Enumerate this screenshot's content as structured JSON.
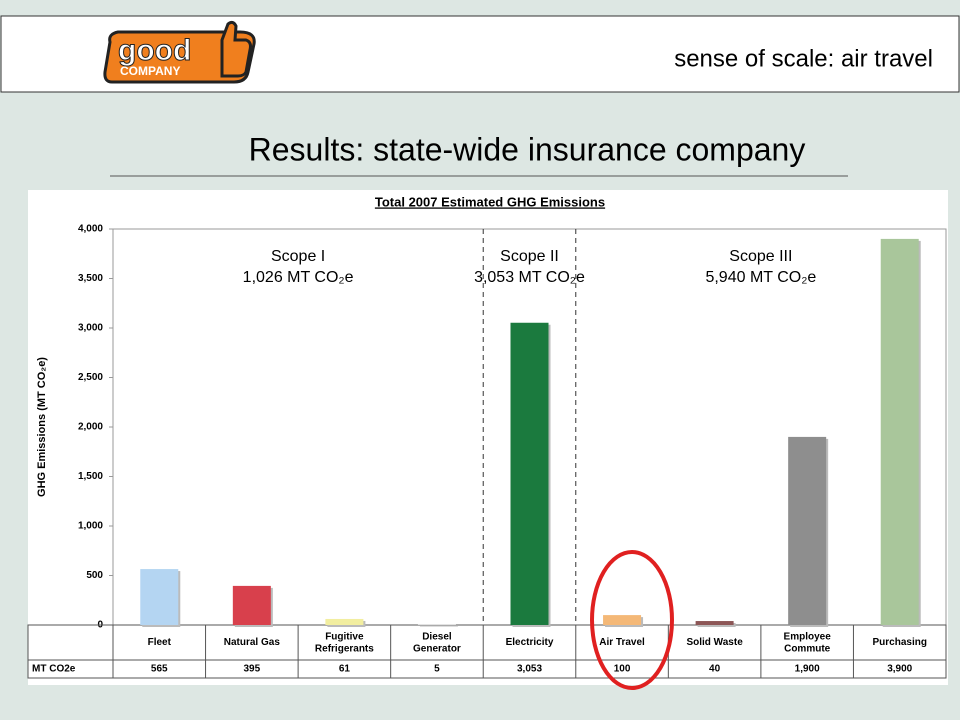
{
  "header": {
    "logo_top": "good",
    "logo_bottom": "COMPANY",
    "title": "sense of scale:  air travel"
  },
  "slide_title": "Results:  state-wide insurance company",
  "chart_data": {
    "type": "bar",
    "title": "Total 2007 Estimated GHG Emissions",
    "y_label": "GHG Emissions (MT CO₂e)",
    "categories": [
      "Fleet",
      "Natural Gas",
      "Fugitive\nRefrigerants",
      "Diesel\nGenerator",
      "Electricity",
      "Air Travel",
      "Solid Waste",
      "Employee\nCommute",
      "Purchasing"
    ],
    "values": [
      565,
      395,
      61,
      5,
      3053,
      100,
      40,
      1900,
      3900
    ],
    "value_labels": [
      "565",
      "395",
      "61",
      "5",
      "3,053",
      "100",
      "40",
      "1,900",
      "3,900"
    ],
    "colors": [
      "#b4d5f2",
      "#d8404c",
      "#f2eea0",
      "#c9c9c9",
      "#1b7a3e",
      "#f4b877",
      "#8c5656",
      "#8e8e8e",
      "#a9c69b"
    ],
    "table_row_label": "MT CO2e",
    "ylim": [
      0,
      4000
    ],
    "yticks": [
      0,
      500,
      {
        "value": 1000,
        "label": "1,000"
      },
      {
        "value": 1500,
        "label": "1,500"
      },
      {
        "value": 2000,
        "label": "2,000"
      },
      {
        "value": 2500,
        "label": "2,500"
      },
      {
        "value": 3000,
        "label": "3,000"
      },
      {
        "value": 3500,
        "label": "3,500"
      },
      {
        "value": 4000,
        "label": "4,000"
      }
    ],
    "grid": false,
    "annotations": [
      {
        "title": "Scope I",
        "total": "1,026 MT CO₂e"
      },
      {
        "title": "Scope II",
        "total": "3,053 MT CO₂e"
      },
      {
        "title": "Scope III",
        "total": "5,940 MT CO₂e"
      }
    ]
  }
}
